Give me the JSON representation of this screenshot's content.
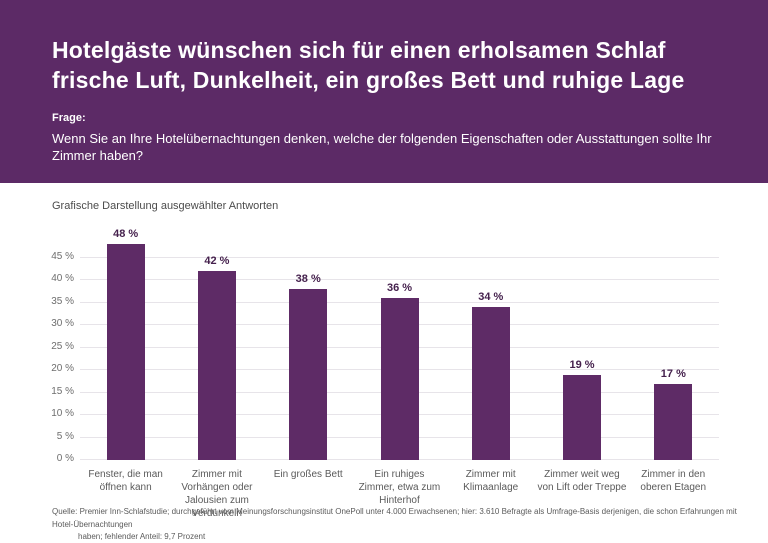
{
  "header": {
    "title_lines": [
      "Hotelgäste wünschen sich für einen erholsamen Schlaf",
      "frische Luft, Dunkelheit, ein großes Bett und ruhige Lage"
    ],
    "question_label": "Frage:",
    "question_text": "Wenn Sie an Ihre Hotelübernachtungen denken, welche der folgenden Eigenschaften oder Ausstattungen sollte Ihr Zimmer haben?"
  },
  "chart_heading": "Grafische Darstellung ausgewählter Antworten",
  "chart_data": {
    "type": "bar",
    "title": "Grafische Darstellung ausgewählter Antworten",
    "categories": [
      "Fenster, die man öffnen kann",
      "Zimmer mit Vorhängen oder Jalousien zum Verdunkeln",
      "Ein großes Bett",
      "Ein ruhiges Zimmer, etwa zum Hinterhof",
      "Zimmer mit Klimaanlage",
      "Zimmer weit weg von Lift oder Treppe",
      "Zimmer in den oberen Etagen"
    ],
    "category_lines": [
      [
        "Fenster, die man",
        "öffnen kann"
      ],
      [
        "Zimmer mit",
        "Vorhängen oder",
        "Jalousien zum",
        "Verdunkeln"
      ],
      [
        "Ein großes Bett"
      ],
      [
        "Ein ruhiges",
        "Zimmer, etwa zum",
        "Hinterhof"
      ],
      [
        "Zimmer mit",
        "Klimaanlage"
      ],
      [
        "Zimmer weit weg",
        "von Lift oder Treppe"
      ],
      [
        "Zimmer in den",
        "oberen Etagen"
      ]
    ],
    "values": [
      48,
      42,
      38,
      36,
      34,
      19,
      17
    ],
    "value_labels": [
      "48 %",
      "42 %",
      "38 %",
      "36 %",
      "34 %",
      "19 %",
      "17 %"
    ],
    "unit": "%",
    "xlabel": "",
    "ylabel": "",
    "ylim": [
      0,
      45
    ],
    "ytick_step": 5,
    "ytick_labels": [
      "0 %",
      "5 %",
      "10 %",
      "15 %",
      "20 %",
      "25 %",
      "30 %",
      "35 %",
      "40 %",
      "45 %"
    ],
    "grid": true,
    "legend_position": "none",
    "colors": {
      "header_bg": "#5c2a66",
      "header_text": "#ffffff",
      "bar_fill": "#5e2b66",
      "value_label": "#45214d",
      "grid_line": "#e7e4e9",
      "axis_text": "#6e6e6e",
      "category_text": "#5a5a5a"
    }
  },
  "source_lines": [
    "Quelle: Premier Inn-Schlafstudie; durchgeführt vom Meinungsforschungsinstitut OnePoll unter 4.000 Erwachsenen; hier: 3.610 Befragte als Umfrage-Basis derjenigen, die schon Erfahrungen mit Hotel-Übernachtungen",
    "haben; fehlender Anteil: 9,7 Prozent"
  ]
}
